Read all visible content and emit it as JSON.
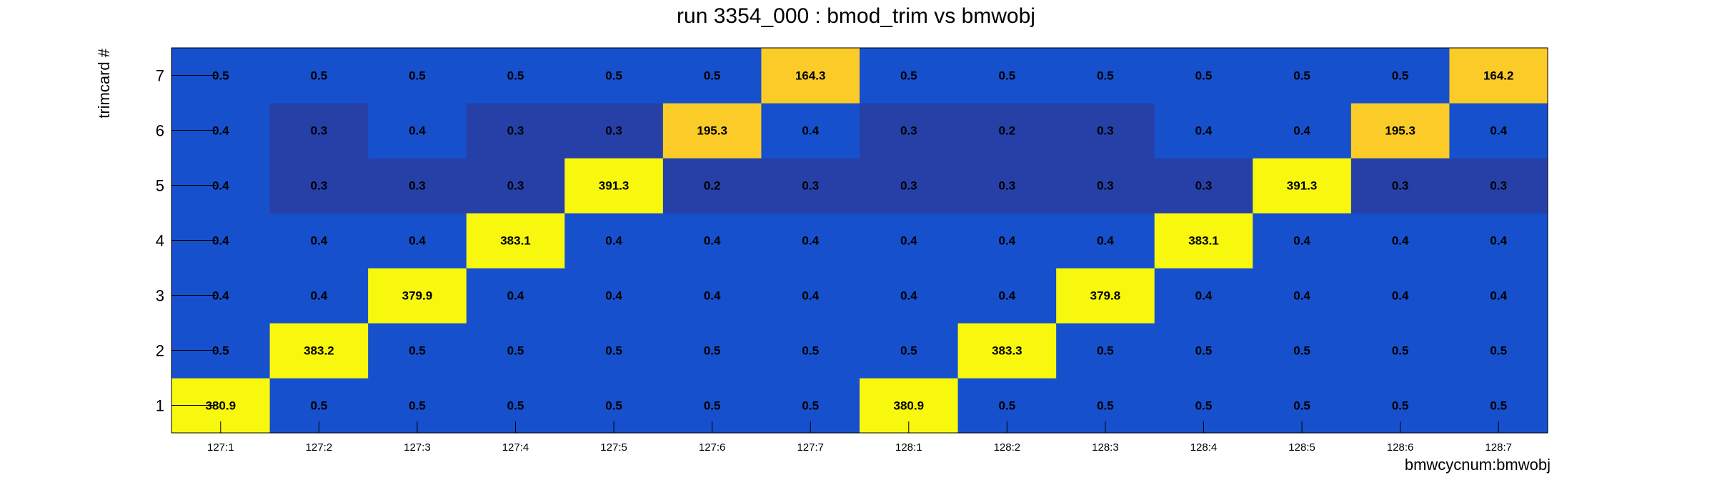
{
  "chart_data": {
    "type": "heatmap",
    "title": "run 3354_000 : bmod_trim vs bmwobj",
    "xlabel": "bmwcycnum:bmwobj",
    "ylabel": "trimcard #",
    "x_categories": [
      "127:1",
      "127:2",
      "127:3",
      "127:4",
      "127:5",
      "127:6",
      "127:7",
      "128:1",
      "128:2",
      "128:3",
      "128:4",
      "128:5",
      "128:6",
      "128:7"
    ],
    "y_categories": [
      "1",
      "2",
      "3",
      "4",
      "5",
      "6",
      "7"
    ],
    "values": [
      [
        380.9,
        0.5,
        0.5,
        0.5,
        0.5,
        0.5,
        0.5,
        380.9,
        0.5,
        0.5,
        0.5,
        0.5,
        0.5,
        0.5
      ],
      [
        0.5,
        383.2,
        0.5,
        0.5,
        0.5,
        0.5,
        0.5,
        0.5,
        383.3,
        0.5,
        0.5,
        0.5,
        0.5,
        0.5
      ],
      [
        0.4,
        0.4,
        379.9,
        0.4,
        0.4,
        0.4,
        0.4,
        0.4,
        0.4,
        379.8,
        0.4,
        0.4,
        0.4,
        0.4
      ],
      [
        0.4,
        0.4,
        0.4,
        383.1,
        0.4,
        0.4,
        0.4,
        0.4,
        0.4,
        0.4,
        383.1,
        0.4,
        0.4,
        0.4
      ],
      [
        0.4,
        0.3,
        0.3,
        0.3,
        391.3,
        0.2,
        0.3,
        0.3,
        0.3,
        0.3,
        0.3,
        391.3,
        0.3,
        0.3
      ],
      [
        0.4,
        0.3,
        0.4,
        0.3,
        0.3,
        195.3,
        0.4,
        0.3,
        0.2,
        0.3,
        0.4,
        0.4,
        195.3,
        0.4
      ],
      [
        0.5,
        0.5,
        0.5,
        0.5,
        0.5,
        0.5,
        164.3,
        0.5,
        0.5,
        0.5,
        0.5,
        0.5,
        0.5,
        164.2
      ]
    ],
    "labels": [
      [
        "380.9",
        "0.5",
        "0.5",
        "0.5",
        "0.5",
        "0.5",
        "0.5",
        "380.9",
        "0.5",
        "0.5",
        "0.5",
        "0.5",
        "0.5",
        "0.5"
      ],
      [
        "0.5",
        "383.2",
        "0.5",
        "0.5",
        "0.5",
        "0.5",
        "0.5",
        "0.5",
        "383.3",
        "0.5",
        "0.5",
        "0.5",
        "0.5",
        "0.5"
      ],
      [
        "0.4",
        "0.4",
        "379.9",
        "0.4",
        "0.4",
        "0.4",
        "0.4",
        "0.4",
        "0.4",
        "379.8",
        "0.4",
        "0.4",
        "0.4",
        "0.4"
      ],
      [
        "0.4",
        "0.4",
        "0.4",
        "383.1",
        "0.4",
        "0.4",
        "0.4",
        "0.4",
        "0.4",
        "0.4",
        "383.1",
        "0.4",
        "0.4",
        "0.4"
      ],
      [
        "0.4",
        "0.3",
        "0.3",
        "0.3",
        "391.3",
        "0.2",
        "0.3",
        "0.3",
        "0.3",
        "0.3",
        "0.3",
        "391.3",
        "0.3",
        "0.3"
      ],
      [
        "0.4",
        "0.3",
        "0.4",
        "0.3",
        "0.3",
        "195.3",
        "0.4",
        "0.3",
        "0.2",
        "0.3",
        "0.4",
        "0.4",
        "195.3",
        "0.4"
      ],
      [
        "0.5",
        "0.5",
        "0.5",
        "0.5",
        "0.5",
        "0.5",
        "164.3",
        "0.5",
        "0.5",
        "0.5",
        "0.5",
        "0.5",
        "0.5",
        "164.2"
      ]
    ],
    "colors": {
      "high": "#f8f80e",
      "mid": "#fbcb28",
      "base": "#1650cc",
      "low": "#2640a8",
      "frame": "#000000"
    }
  }
}
